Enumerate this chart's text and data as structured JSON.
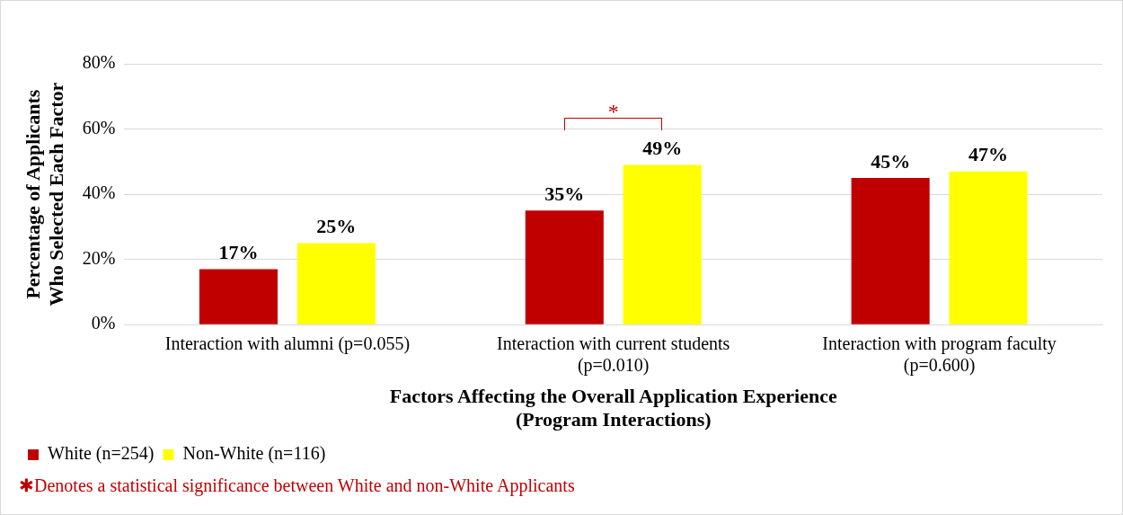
{
  "chart_data": {
    "type": "bar",
    "xlabel": "Factors Affecting the Overall Application Experience (Program Interactions)",
    "ylabel": "Percentage of Applicants Who Selected Each Factor",
    "categories": [
      "Interaction with alumni (p=0.055)",
      "Interaction with current students (p=0.010)",
      "Interaction with program faculty (p=0.600)"
    ],
    "series": [
      {
        "name": "White (n=254)",
        "color": "#c00000",
        "values": [
          17,
          35,
          45
        ],
        "value_labels": [
          "17%",
          "35%",
          "45%"
        ]
      },
      {
        "name": "Non-White (n=116)",
        "color": "#ffff00",
        "values": [
          25,
          49,
          47
        ],
        "value_labels": [
          "25%",
          "49%",
          "47%"
        ]
      }
    ],
    "ylim": [
      0,
      80
    ],
    "yticks": [
      {
        "value": 0,
        "label": "0%"
      },
      {
        "value": 20,
        "label": "20%"
      },
      {
        "value": 40,
        "label": "40%"
      },
      {
        "value": 60,
        "label": "60%"
      },
      {
        "value": 80,
        "label": "80%"
      }
    ],
    "grid": "y",
    "legend": "bottom left",
    "annotations": [
      "*",
      "✱Denotes a statistical significance between White and non-White Applicants"
    ]
  }
}
